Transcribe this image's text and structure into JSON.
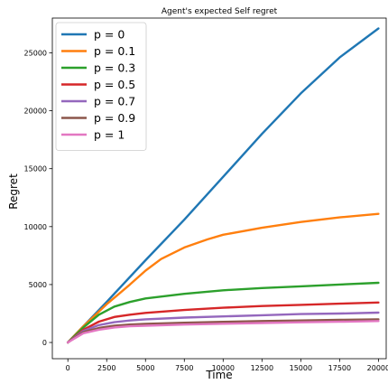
{
  "chart_data": {
    "type": "line",
    "title": "Agent's expected Self regret",
    "xlabel": "Time",
    "ylabel": "Regret",
    "xlim": [
      -1000,
      20500
    ],
    "ylim": [
      -1400,
      28000
    ],
    "xticks": [
      0,
      2500,
      5000,
      7500,
      10000,
      12500,
      15000,
      17500,
      20000
    ],
    "yticks": [
      0,
      5000,
      10000,
      15000,
      20000,
      25000
    ],
    "grid": false,
    "legend_position": "top-left",
    "series": [
      {
        "name": "p = 0",
        "color": "#1f77b4",
        "x": [
          0,
          1000,
          2500,
          5000,
          7500,
          10000,
          12500,
          15000,
          17500,
          20000
        ],
        "y": [
          0,
          1400,
          3500,
          7100,
          10600,
          14300,
          18000,
          21500,
          24600,
          27100
        ]
      },
      {
        "name": "p = 0.1",
        "color": "#ff7f0e",
        "x": [
          0,
          1000,
          2500,
          4000,
          5000,
          6000,
          7500,
          9000,
          10000,
          12500,
          15000,
          17500,
          20000
        ],
        "y": [
          0,
          1400,
          3300,
          5000,
          6200,
          7200,
          8200,
          8900,
          9300,
          9900,
          10400,
          10800,
          11100
        ]
      },
      {
        "name": "p = 0.3",
        "color": "#2ca02c",
        "x": [
          0,
          1000,
          2000,
          3000,
          4000,
          5000,
          7500,
          10000,
          12500,
          15000,
          17500,
          20000
        ],
        "y": [
          0,
          1300,
          2400,
          3100,
          3500,
          3800,
          4200,
          4500,
          4700,
          4850,
          5000,
          5150
        ]
      },
      {
        "name": "p = 0.5",
        "color": "#d62728",
        "x": [
          0,
          1000,
          2000,
          3000,
          4000,
          5000,
          7500,
          10000,
          12500,
          15000,
          17500,
          20000
        ],
        "y": [
          0,
          1100,
          1800,
          2200,
          2400,
          2550,
          2800,
          3000,
          3150,
          3250,
          3350,
          3450
        ]
      },
      {
        "name": "p = 0.7",
        "color": "#9467bd",
        "x": [
          0,
          1000,
          2000,
          3000,
          4000,
          5000,
          7500,
          10000,
          12500,
          15000,
          17500,
          20000
        ],
        "y": [
          0,
          1000,
          1500,
          1750,
          1900,
          2000,
          2150,
          2250,
          2350,
          2450,
          2500,
          2580
        ]
      },
      {
        "name": "p = 0.9",
        "color": "#8c564b",
        "x": [
          0,
          1000,
          2000,
          3000,
          4000,
          5000,
          7500,
          10000,
          12500,
          15000,
          17500,
          20000
        ],
        "y": [
          0,
          900,
          1250,
          1450,
          1550,
          1600,
          1700,
          1780,
          1850,
          1900,
          1950,
          2000
        ]
      },
      {
        "name": "p = 1",
        "color": "#e377c2",
        "x": [
          0,
          1000,
          2000,
          3000,
          4000,
          5000,
          7500,
          10000,
          12500,
          15000,
          17500,
          20000
        ],
        "y": [
          0,
          800,
          1100,
          1300,
          1400,
          1450,
          1550,
          1620,
          1680,
          1740,
          1790,
          1850
        ]
      }
    ]
  }
}
